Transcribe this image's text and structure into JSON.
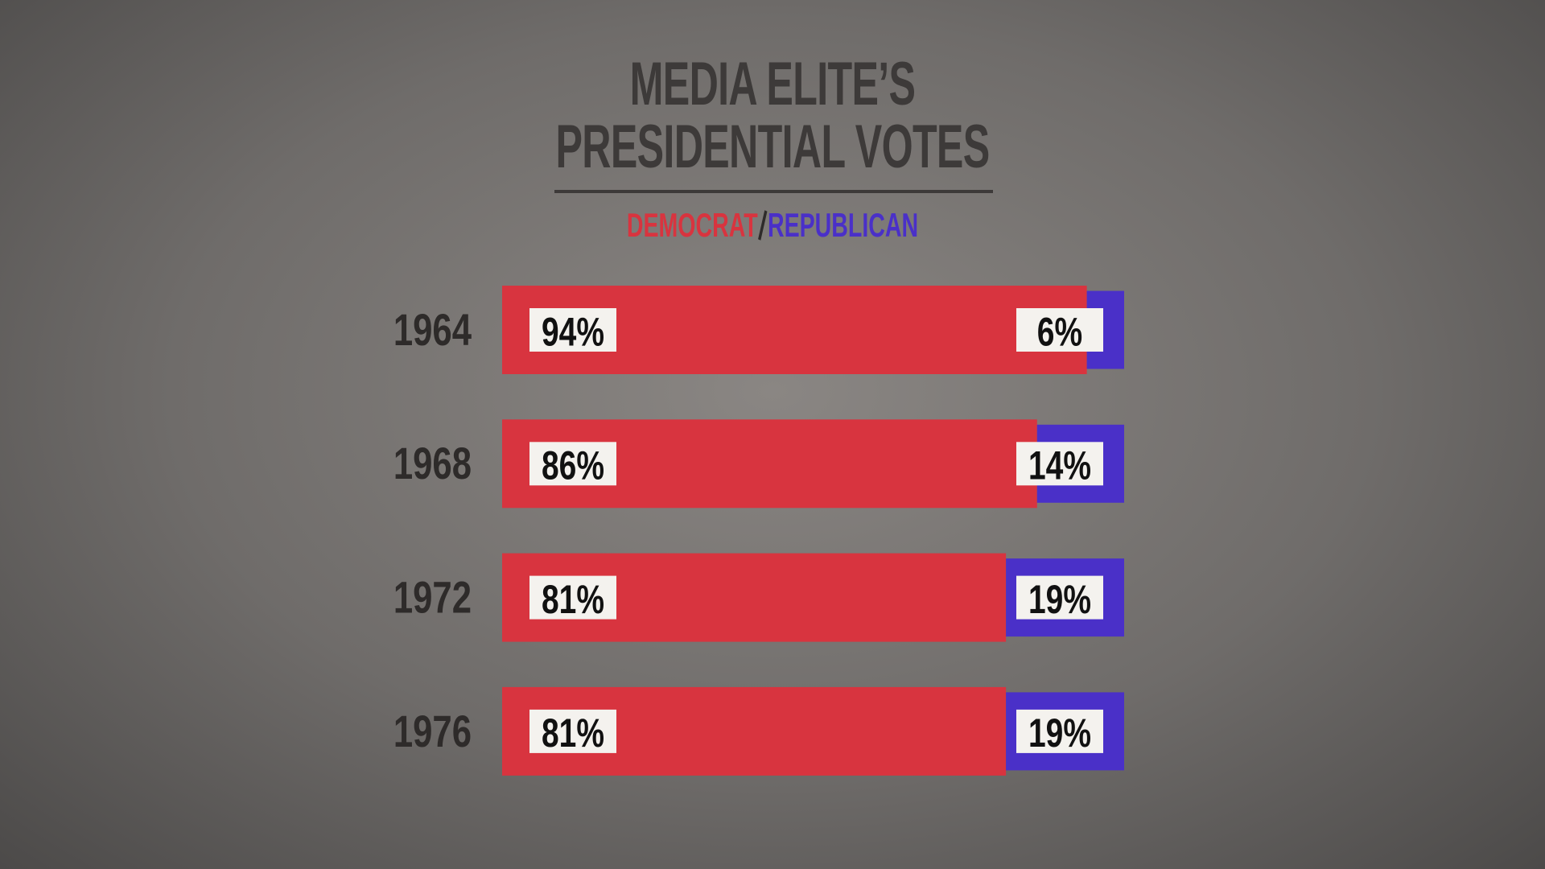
{
  "chart_data": {
    "type": "stacked-bar",
    "orientation": "horizontal",
    "title": "MEDIA ELITE’S PRESIDENTIAL VOTES",
    "categories": [
      "1964",
      "1968",
      "1972",
      "1976"
    ],
    "series": [
      {
        "name": "DEMOCRAT",
        "color": "#d8343f",
        "values": [
          94,
          86,
          81,
          81
        ],
        "value_labels": [
          "94%",
          "86%",
          "81%",
          "81%"
        ]
      },
      {
        "name": "REPUBLICAN",
        "color": "#4a30c8",
        "values": [
          6,
          14,
          19,
          19
        ],
        "value_labels": [
          "6%",
          "14%",
          "19%",
          "19%"
        ]
      }
    ]
  }
}
